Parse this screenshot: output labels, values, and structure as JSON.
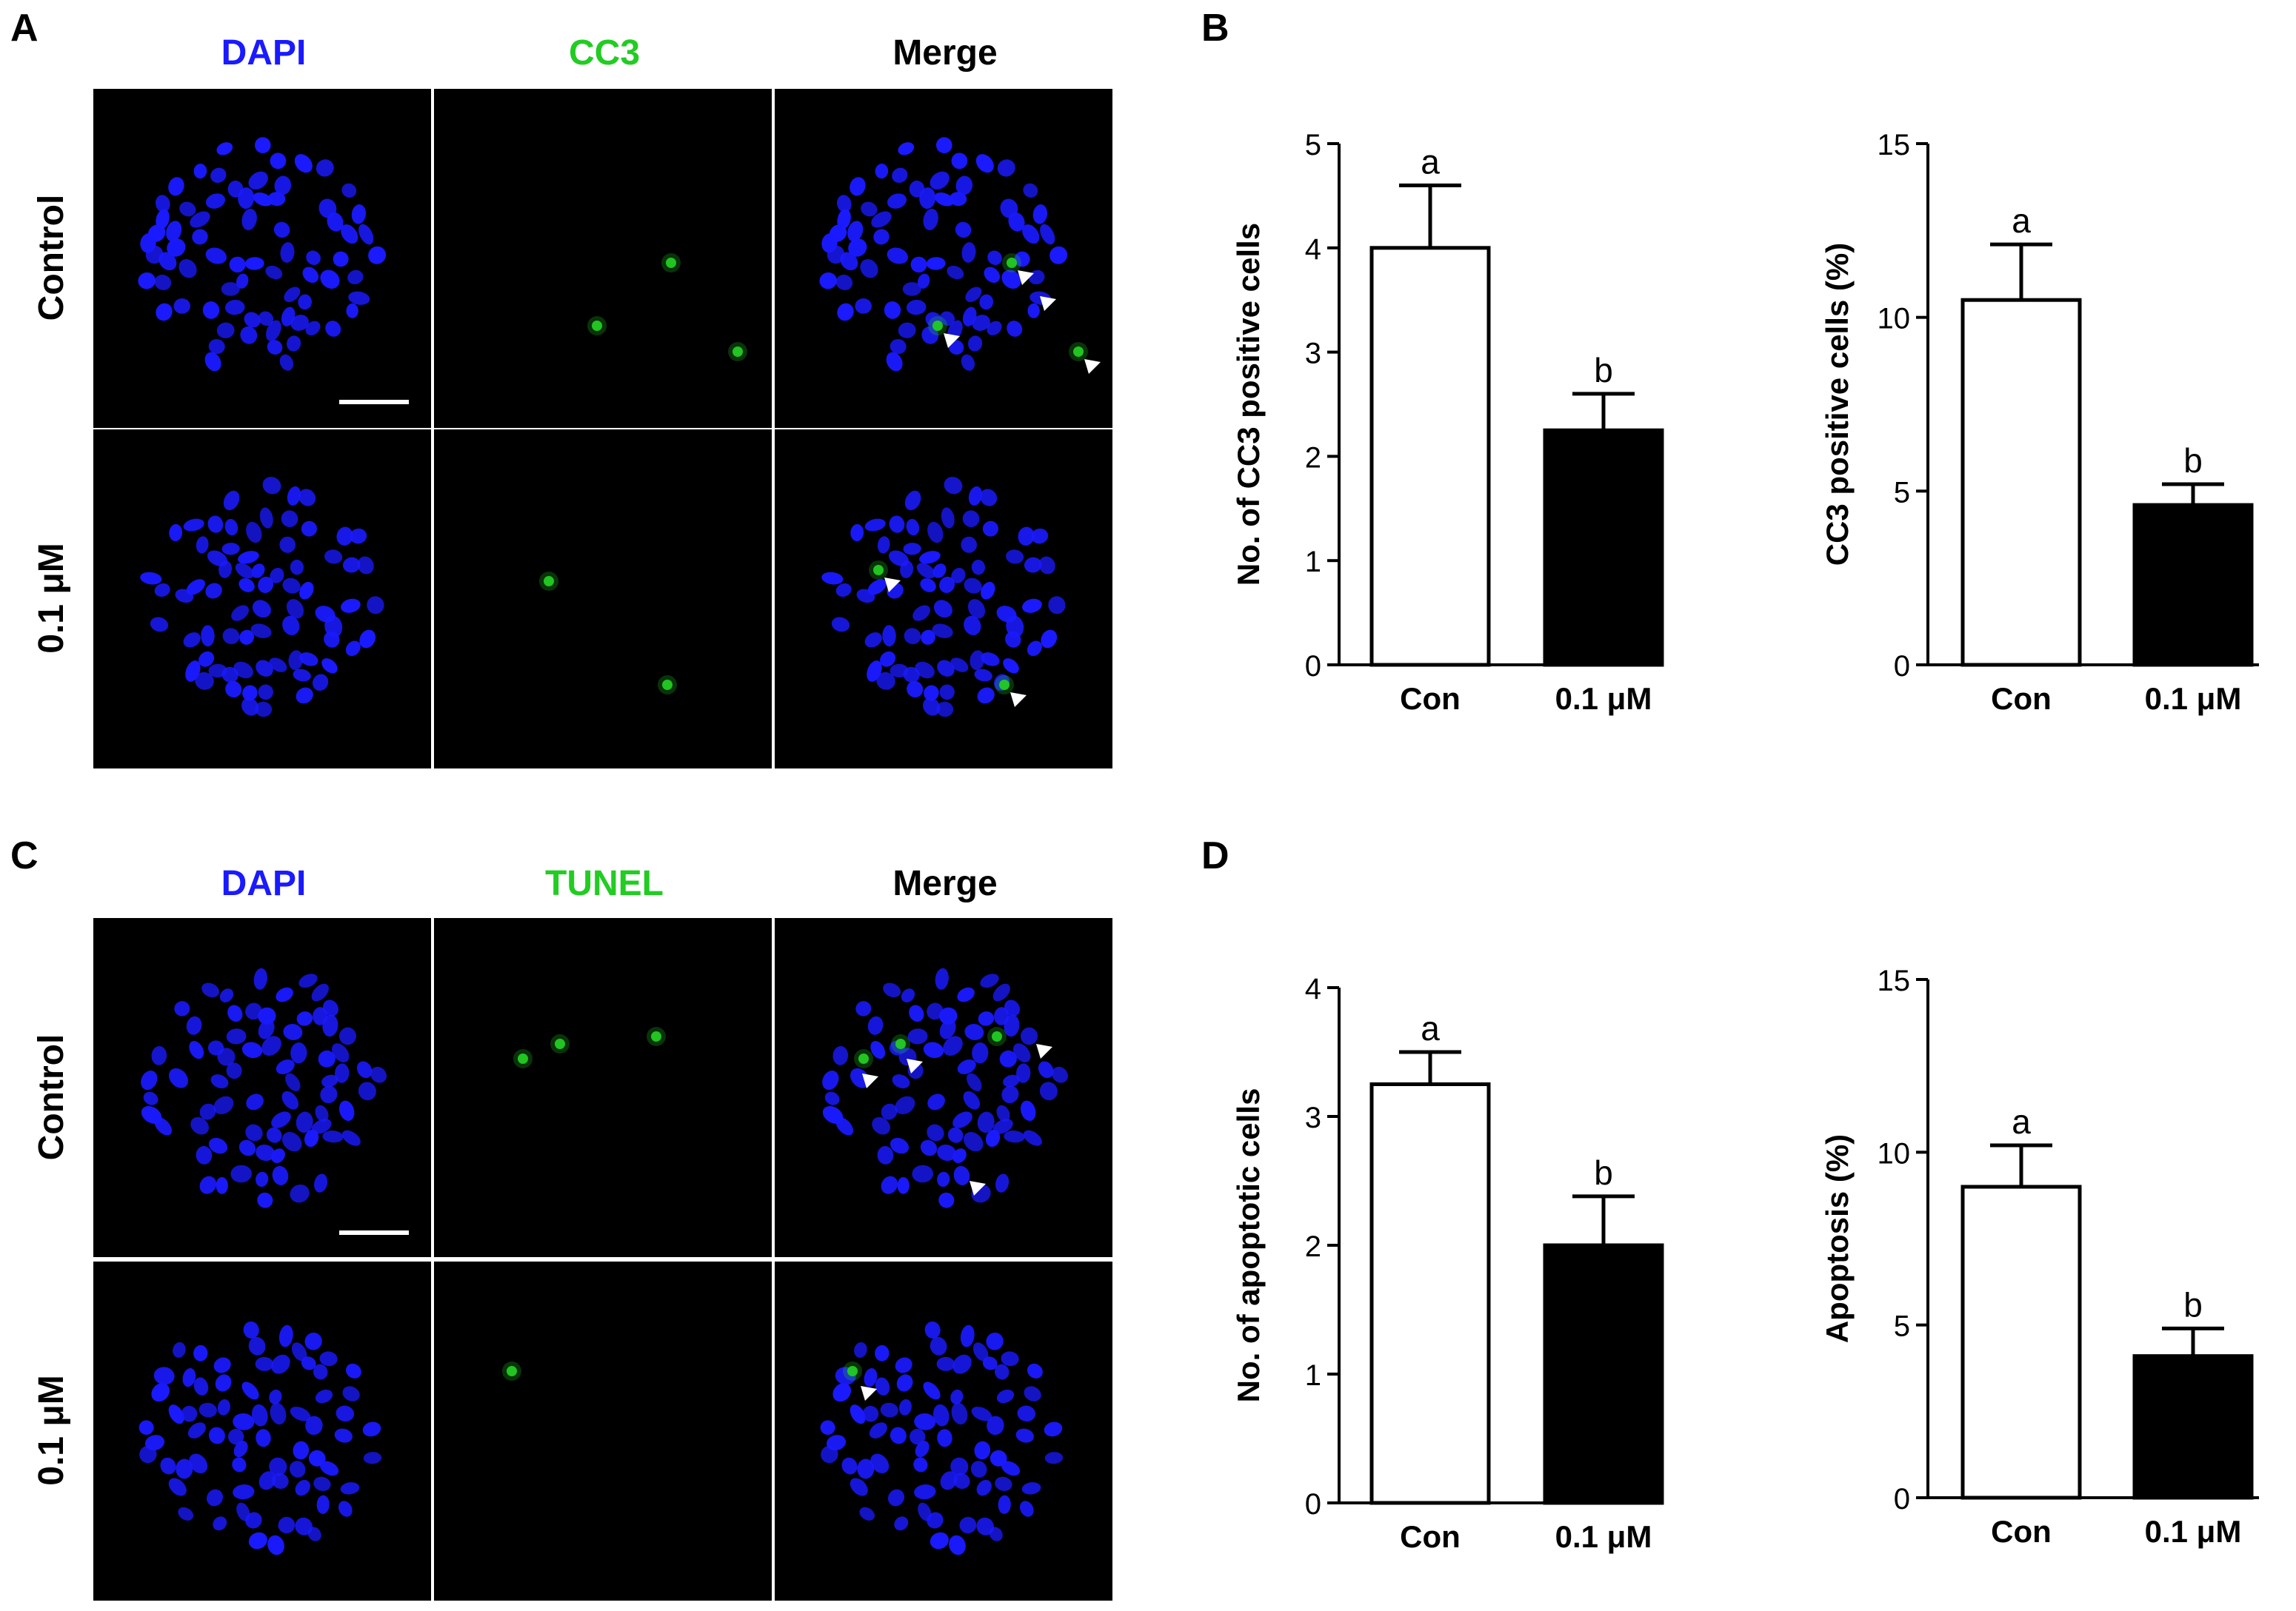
{
  "panels": [
    {
      "letter": "A",
      "columns": [
        "DAPI",
        "CC3",
        "Merge"
      ],
      "rows": [
        "Control",
        "0.1 μM"
      ]
    },
    {
      "letter": "B"
    },
    {
      "letter": "C",
      "columns": [
        "DAPI",
        "TUNEL",
        "Merge"
      ],
      "rows": [
        "Control",
        "0.1 μM"
      ]
    },
    {
      "letter": "D"
    }
  ],
  "colors": {
    "dapi": "#1a1aff",
    "green": "#22cc22",
    "background": "#000000"
  },
  "chart_data": [
    {
      "type": "bar",
      "panel": "B",
      "categories": [
        "Con",
        "0.1 μM"
      ],
      "values": [
        4.0,
        2.25
      ],
      "errors": [
        0.6,
        0.35
      ],
      "significance": [
        "a",
        "b"
      ],
      "ylabel": "No. of CC3 positive cells",
      "ylim": [
        0,
        5
      ],
      "yticks": [
        0,
        1,
        2,
        3,
        4,
        5
      ],
      "bar_colors": [
        "#ffffff",
        "#000000"
      ]
    },
    {
      "type": "bar",
      "panel": "B",
      "categories": [
        "Con",
        "0.1 μM"
      ],
      "values": [
        10.5,
        4.6
      ],
      "errors": [
        1.6,
        0.6
      ],
      "significance": [
        "a",
        "b"
      ],
      "ylabel": "CC3 positive cells (%)",
      "ylim": [
        0,
        15
      ],
      "yticks": [
        0,
        5,
        10,
        15
      ],
      "bar_colors": [
        "#ffffff",
        "#000000"
      ]
    },
    {
      "type": "bar",
      "panel": "D",
      "categories": [
        "Con",
        "0.1 μM"
      ],
      "values": [
        3.25,
        2.0
      ],
      "errors": [
        0.25,
        0.38
      ],
      "significance": [
        "a",
        "b"
      ],
      "ylabel": "No. of apoptotic cells",
      "ylim": [
        0,
        4
      ],
      "yticks": [
        0,
        1,
        2,
        3,
        4
      ],
      "bar_colors": [
        "#ffffff",
        "#000000"
      ]
    },
    {
      "type": "bar",
      "panel": "D",
      "categories": [
        "Con",
        "0.1 μM"
      ],
      "values": [
        9.0,
        4.1
      ],
      "errors": [
        1.2,
        0.8
      ],
      "significance": [
        "a",
        "b"
      ],
      "ylabel": "Apoptosis (%)",
      "ylim": [
        0,
        15
      ],
      "yticks": [
        0,
        5,
        10,
        15
      ],
      "bar_colors": [
        "#ffffff",
        "#000000"
      ]
    }
  ]
}
